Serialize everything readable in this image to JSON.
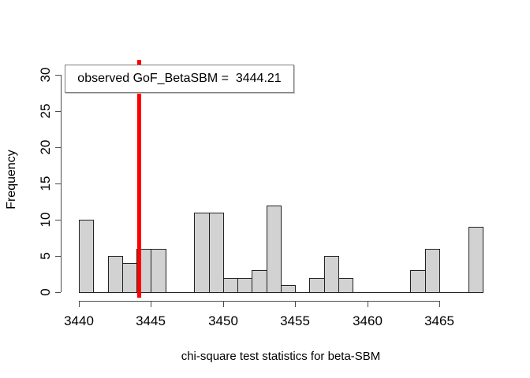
{
  "chart_data": {
    "type": "histogram",
    "title": "",
    "xlabel": "chi-square test statistics for beta-SBM",
    "ylabel": "Frequency",
    "bin_start": 3440,
    "bin_width": 1,
    "bin_counts": [
      10,
      0,
      5,
      4,
      6,
      6,
      0,
      0,
      11,
      11,
      2,
      2,
      3,
      12,
      1,
      0,
      2,
      5,
      2,
      0,
      0,
      0,
      0,
      3,
      6,
      0,
      0,
      9
    ],
    "x_ticks": [
      3440,
      3445,
      3450,
      3455,
      3460,
      3465
    ],
    "y_ticks": [
      0,
      5,
      10,
      15,
      20,
      25,
      30
    ],
    "xlim": [
      3440,
      3468
    ],
    "ylim": [
      0,
      30
    ],
    "grid": false,
    "legend_position": "top-left",
    "bar_fill": "#d2d2d2",
    "bar_border": "#222222",
    "axis_color": "#4a4a4a",
    "text_color": "#000000",
    "observed_line": {
      "value": 3444.21,
      "color": "#ff0000",
      "legend_label": "observed GoF_BetaSBM =  3444.21"
    }
  }
}
